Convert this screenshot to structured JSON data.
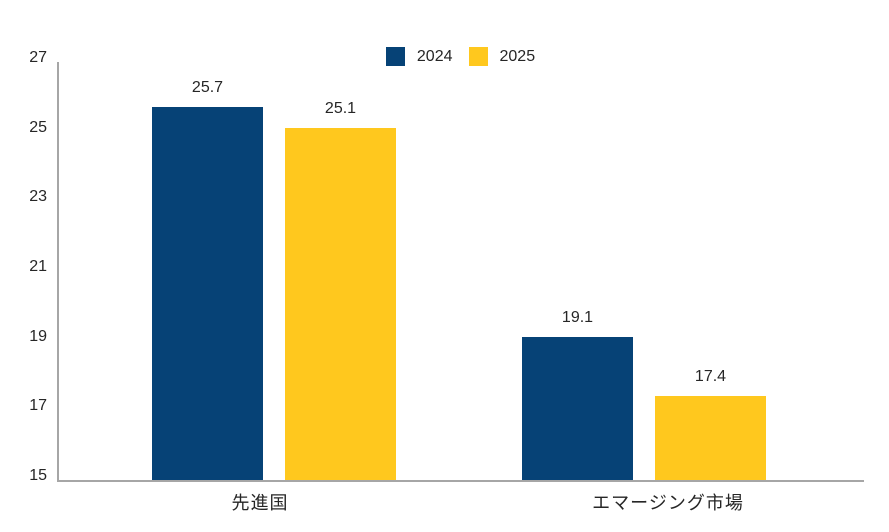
{
  "chart_data": {
    "type": "bar",
    "categories": [
      "先進国",
      "エマージング市場"
    ],
    "series": [
      {
        "name": "2024",
        "color": "#064276",
        "values": [
          25.7,
          19.1
        ]
      },
      {
        "name": "2025",
        "color": "#FFC81E",
        "values": [
          25.1,
          17.4
        ]
      }
    ],
    "data_labels": [
      [
        "25.7",
        "25.1"
      ],
      [
        "19.1",
        "17.4"
      ]
    ],
    "title": "",
    "xlabel": "",
    "ylabel": "",
    "ylim": [
      15,
      27
    ],
    "yticks": [
      27,
      25,
      23,
      21,
      19,
      17,
      15
    ],
    "grid": false,
    "legend": {
      "position": "top-center",
      "entries": [
        "2024",
        "2025"
      ]
    },
    "axis_color": "#A6A6A6",
    "text_color": "#262626",
    "background_color": "#FFFFFF"
  }
}
